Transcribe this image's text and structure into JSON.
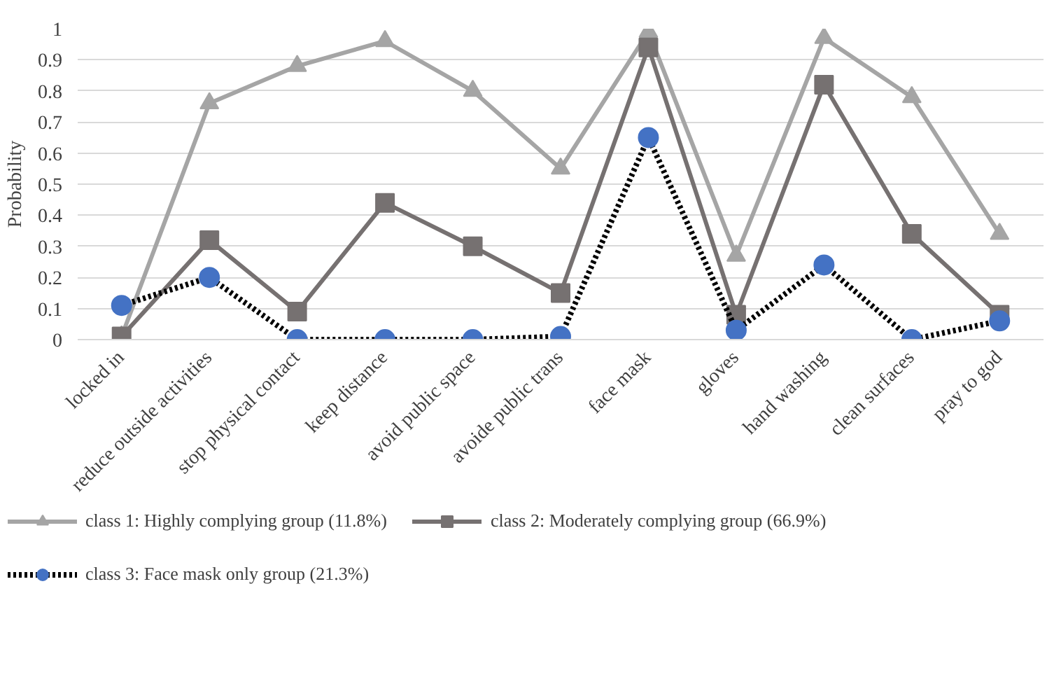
{
  "chart_data": {
    "type": "line",
    "ylabel": "Probability",
    "categories": [
      "locked in",
      "reduce outside activities",
      "stop physical contact",
      "keep distance",
      "avoid public space",
      "avoide public trans",
      "face mask",
      "gloves",
      "hand washing",
      "clean surfaces",
      "pray to god"
    ],
    "series": [
      {
        "name": "class 1: Highly complying group (11.8%)",
        "color": "#a5a5a5",
        "marker": "triangle",
        "line_style": "solid",
        "values": [
          0.01,
          0.76,
          0.88,
          0.96,
          0.8,
          0.55,
          0.99,
          0.27,
          0.97,
          0.78,
          0.34
        ]
      },
      {
        "name": "class 2: Moderately complying group (66.9%)",
        "color": "#767171",
        "marker": "square",
        "line_style": "solid",
        "values": [
          0.01,
          0.32,
          0.09,
          0.44,
          0.3,
          0.15,
          0.94,
          0.08,
          0.82,
          0.34,
          0.08
        ]
      },
      {
        "name": "class 3: Face mask only group (21.3%)",
        "color": "#000000",
        "colors": [
          "#4472c4",
          "#4472c4",
          "#4472c4",
          "#4472c4",
          "#4472c4",
          "#4472c4",
          "#4472c4",
          "#4472c4",
          "#4472c4",
          "#4472c4",
          "#4472c4"
        ],
        "marker": "circle",
        "line_style": "dotted",
        "values": [
          0.11,
          0.2,
          0.0,
          0.0,
          0.0,
          0.01,
          0.65,
          0.03,
          0.24,
          0.0,
          0.06
        ]
      }
    ],
    "ylim": [
      0,
      1
    ],
    "yticks": [
      0,
      0.1,
      0.2,
      0.3,
      0.4,
      0.5,
      0.6,
      0.7,
      0.8,
      0.9,
      1
    ],
    "grid": "y",
    "legend": "bottom"
  }
}
